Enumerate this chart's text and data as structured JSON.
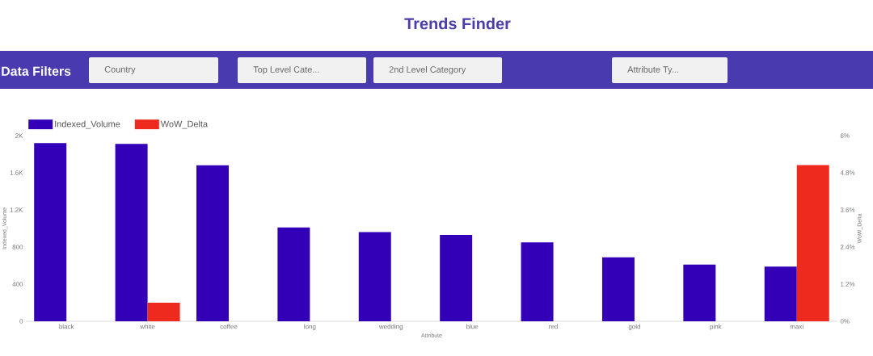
{
  "chart_data": {
    "type": "bar",
    "title": "Trends Finder",
    "annotations": [
      "Data Filters",
      "Country",
      "Top Level Cate...",
      "2nd Level Category",
      "Attribute Ty..."
    ],
    "categories": [
      "black",
      "white",
      "coffee",
      "long",
      "wedding",
      "blue",
      "red",
      "gold",
      "pink",
      "maxi"
    ],
    "series": [
      {
        "name": "Indexed_Volume",
        "color": "#3300b8",
        "values": [
          1920,
          1910,
          1680,
          1010,
          960,
          930,
          850,
          690,
          610,
          590
        ]
      },
      {
        "name": "WoW_Delta",
        "color": "#ee2a1f",
        "axis": "y2",
        "values": [
          0,
          0.6,
          0,
          0,
          0,
          0,
          0,
          0,
          0,
          5.05
        ]
      }
    ],
    "xlabel": "Attribute",
    "ylabel": "Indexed_Volume",
    "y2label": "WoW_Delta",
    "ylim": [
      0,
      2000
    ],
    "yticks": [
      0,
      400,
      800,
      {
        "value": 1200,
        "label": "1.2K"
      },
      {
        "value": 1600,
        "label": "1.6K"
      },
      {
        "value": 2000,
        "label": "2K"
      }
    ],
    "y2lim": [
      0,
      6
    ],
    "y2ticks": [
      {
        "value": 0,
        "label": "0%"
      },
      {
        "value": 1.2,
        "label": "1.2%"
      },
      {
        "value": 2.4,
        "label": "2.4%"
      },
      {
        "value": 3.6,
        "label": "3.6%"
      },
      {
        "value": 4.8,
        "label": "4.8%"
      },
      {
        "value": 6,
        "label": "6%"
      }
    ],
    "legend": "top left"
  }
}
